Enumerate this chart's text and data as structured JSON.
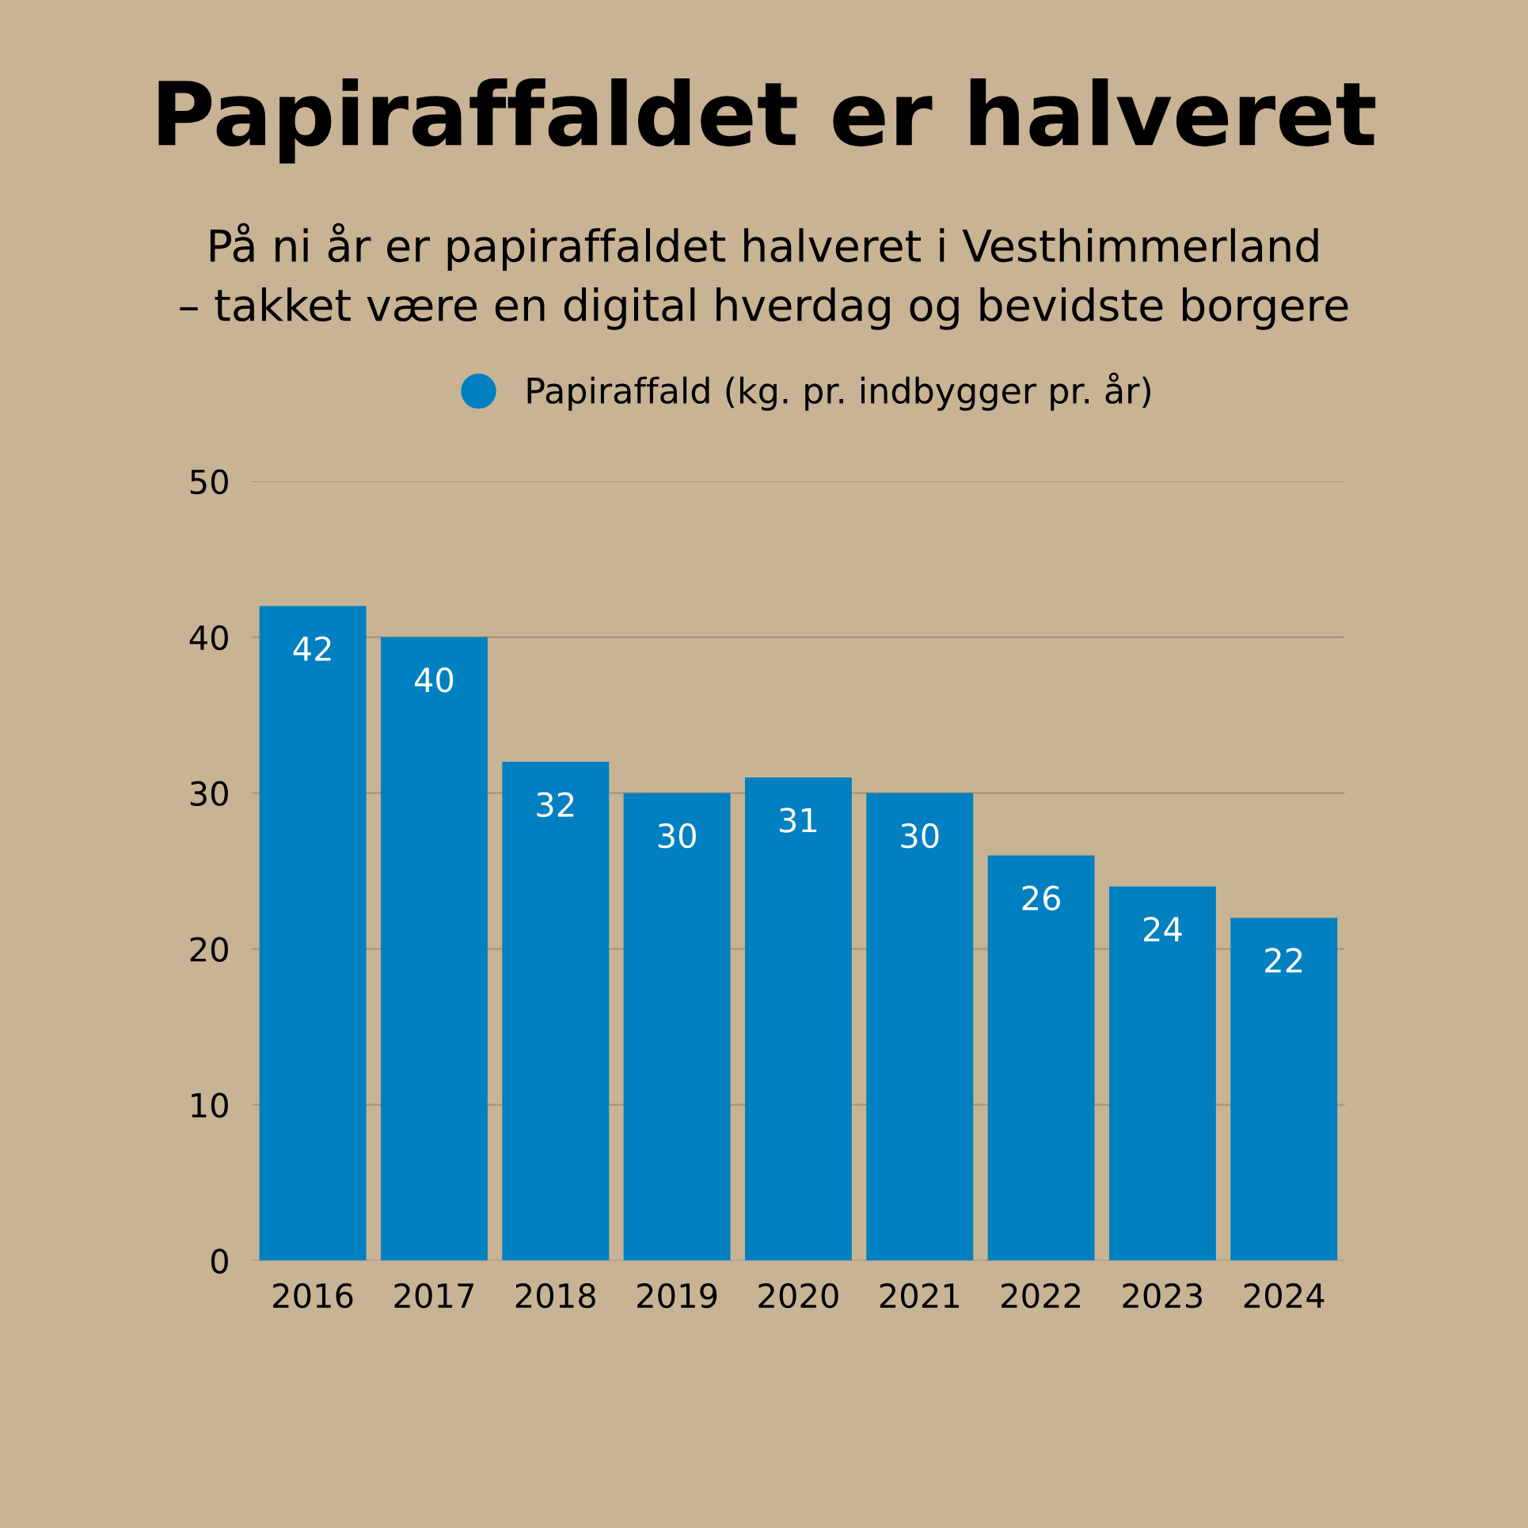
{
  "chart_data": {
    "type": "bar",
    "title": "Papiraffaldet er halveret",
    "subtitle": "På ni år er papiraffaldet halveret i Vesthimmerland\n– takket være en digital hverdag og bevidste borgere",
    "categories": [
      "2016",
      "2017",
      "2018",
      "2019",
      "2020",
      "2021",
      "2022",
      "2023",
      "2024"
    ],
    "series": [
      {
        "name": "Papiraffald (kg. pr. indbygger pr. år)",
        "color": "#0080c0",
        "values": [
          42,
          40,
          32,
          30,
          31,
          30,
          26,
          24,
          22
        ]
      }
    ],
    "ylim": [
      0,
      50
    ],
    "yticks": [
      0,
      10,
      20,
      30,
      40,
      50
    ],
    "grid": "y",
    "legend": "top",
    "data_labels": true
  }
}
